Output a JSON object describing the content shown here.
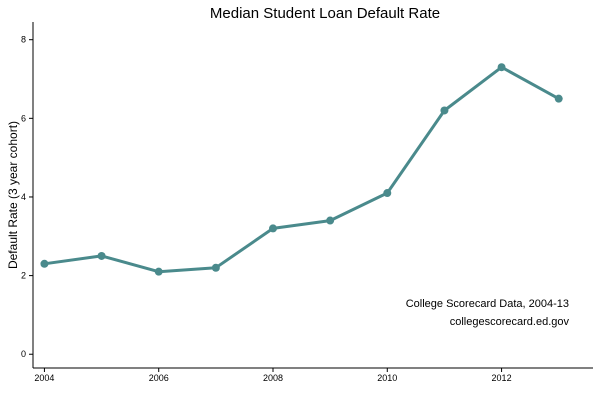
{
  "chart_data": {
    "type": "line",
    "title": "Median Student Loan Default Rate",
    "xlabel": "",
    "ylabel": "Default Rate (3 year cohort)",
    "x": [
      2004,
      2005,
      2006,
      2007,
      2008,
      2009,
      2010,
      2011,
      2012,
      2013
    ],
    "series": [
      {
        "values": [
          2.3,
          2.5,
          2.1,
          2.2,
          3.2,
          3.4,
          4.1,
          6.2,
          7.3,
          6.5
        ]
      }
    ],
    "xlim": [
      2003.8,
      2013.6
    ],
    "ylim": [
      -0.35,
      8.45
    ],
    "xticks": [
      2004,
      2006,
      2008,
      2010,
      2012
    ],
    "yticks": [
      0,
      2,
      4,
      6,
      8
    ],
    "annotations": [
      "College Scorecard Data, 2004-13",
      "collegescorecard.ed.gov"
    ],
    "grid": false,
    "line_color": "#4a8a8c"
  }
}
